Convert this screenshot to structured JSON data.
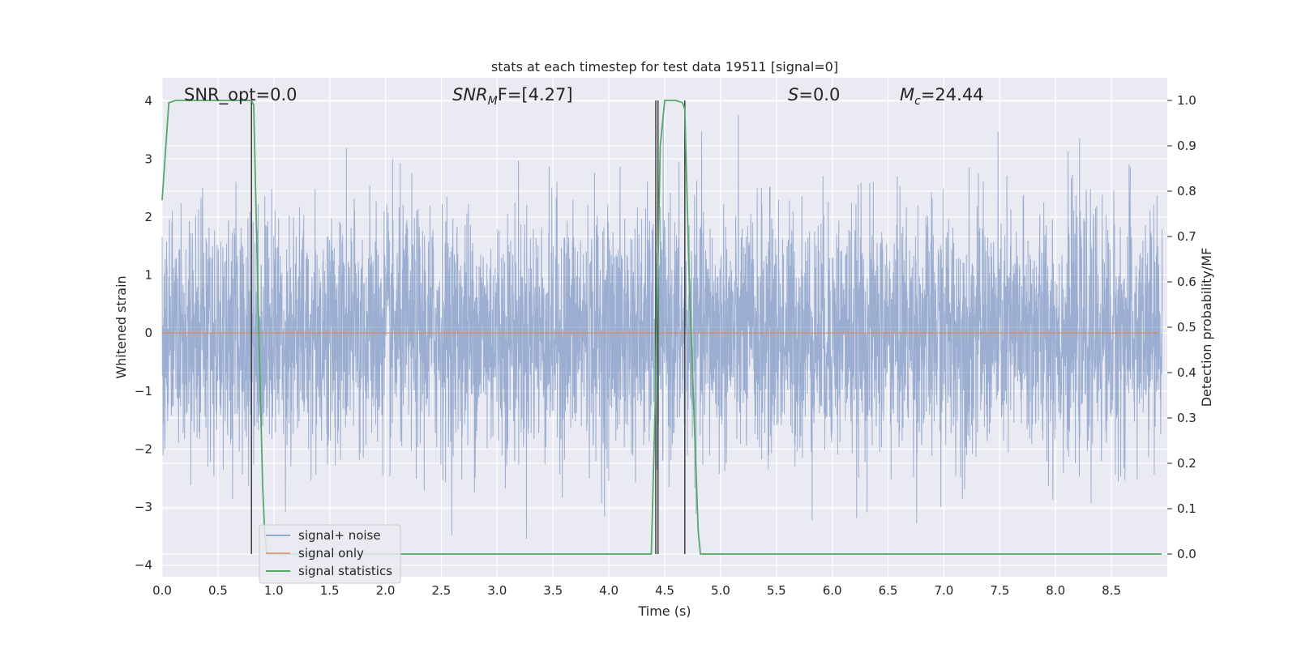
{
  "chart_data": {
    "type": "line",
    "title": "stats at each timestep for test data 19511 [signal=0]",
    "xlabel": "Time (s)",
    "ylabel": "Whitened strain",
    "y2label": "Detection probability/MF",
    "xlim": [
      0.0,
      9.0
    ],
    "ylim": [
      -4.2,
      4.4
    ],
    "y2lim": [
      -0.05,
      1.05
    ],
    "xticks": [
      "0.0",
      "0.5",
      "1.0",
      "1.5",
      "2.0",
      "2.5",
      "3.0",
      "3.5",
      "4.0",
      "4.5",
      "5.0",
      "5.5",
      "6.0",
      "6.5",
      "7.0",
      "7.5",
      "8.0",
      "8.5"
    ],
    "yticks": [
      "4",
      "3",
      "2",
      "1",
      "0",
      "−1",
      "−2",
      "−3",
      "−4"
    ],
    "y2ticks": [
      "1.0",
      "0.9",
      "0.8",
      "0.7",
      "0.6",
      "0.5",
      "0.4",
      "0.3",
      "0.2",
      "0.1",
      "0.0"
    ],
    "grid": true,
    "annotations": {
      "snr_opt": "SNR_opt=0.0",
      "snr_mf_main": "SNR",
      "snr_mf_sub": "M",
      "snr_mf_rest": "F=[4.27]",
      "s_main": "S",
      "s_rest": "=0.0",
      "mc_main": "M",
      "mc_sub": "c",
      "mc_rest": "=24.44"
    },
    "legend": {
      "position": "lower-left",
      "entries": [
        {
          "label": "signal+ noise",
          "color": "#4c72b0"
        },
        {
          "label": "signal only",
          "color": "#dd8452"
        },
        {
          "label": "signal statistics",
          "color": "#55a868"
        }
      ]
    },
    "series": [
      {
        "name": "signal+ noise",
        "axis": "left",
        "color": "#4c72b0",
        "description": "whitened strain noise trace, 0 to 9 s, amplitude roughly ±2.5 with peaks up to ±4"
      },
      {
        "name": "signal only",
        "axis": "left",
        "color": "#dd8452",
        "x": [
          0.0,
          9.0
        ],
        "y": [
          0.0,
          0.0
        ]
      },
      {
        "name": "signal statistics",
        "axis": "right",
        "color": "#55a868",
        "x": [
          0.0,
          0.06,
          0.12,
          0.5,
          0.8,
          0.82,
          0.86,
          0.9,
          0.92,
          0.94,
          1.5,
          2.0,
          3.0,
          4.0,
          4.38,
          4.42,
          4.46,
          4.5,
          4.6,
          4.66,
          4.68,
          4.72,
          4.8,
          4.82,
          5.0,
          6.0,
          7.0,
          8.0,
          8.95
        ],
        "y": [
          0.78,
          0.995,
          1.0,
          1.0,
          1.0,
          0.99,
          0.55,
          0.15,
          0.04,
          0.0,
          0.0,
          0.0,
          0.0,
          0.0,
          0.0,
          0.38,
          0.9,
          1.0,
          1.0,
          0.995,
          0.98,
          0.6,
          0.05,
          0.0,
          0.0,
          0.0,
          0.0,
          0.0,
          0.0
        ]
      }
    ],
    "vertical_lines": [
      {
        "x": 0.8,
        "y_top": 1.0,
        "y_bottom": 0.0
      },
      {
        "x": 4.42,
        "y_top": 1.0,
        "y_bottom": 0.0
      },
      {
        "x": 4.44,
        "y_top": 1.0,
        "y_bottom": 0.0
      },
      {
        "x": 4.68,
        "y_top": 1.0,
        "y_bottom": 0.0
      }
    ],
    "colors": {
      "plot_bg": "#eaeaf2",
      "grid": "#ffffff",
      "vline": "#404040"
    }
  }
}
